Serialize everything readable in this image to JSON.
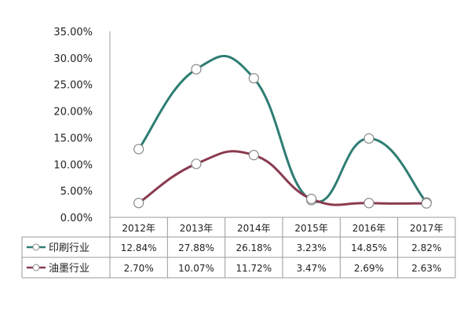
{
  "chart_data": {
    "type": "line",
    "title": "",
    "xlabel": "",
    "ylabel": "",
    "categories": [
      "2012年",
      "2013年",
      "2014年",
      "2015年",
      "2016年",
      "2017年"
    ],
    "ylim": [
      0,
      35
    ],
    "y_tick_labels": [
      "0.00%",
      "5.00%",
      "10.00%",
      "15.00%",
      "20.00%",
      "25.00%",
      "30.00%",
      "35.00%"
    ],
    "legend_placement": "data-table",
    "grid": false,
    "smooth": true,
    "series": [
      {
        "name": "印刷行业",
        "values": [
          12.84,
          27.88,
          26.18,
          3.23,
          14.85,
          2.82
        ],
        "labels": [
          "12.84%",
          "27.88%",
          "26.18%",
          "3.23%",
          "14.85%",
          "2.82%"
        ],
        "color": "#2e7d73"
      },
      {
        "name": "油墨行业",
        "values": [
          2.7,
          10.07,
          11.72,
          3.47,
          2.69,
          2.63
        ],
        "labels": [
          "2.70%",
          "10.07%",
          "11.72%",
          "3.47%",
          "2.69%",
          "2.63%"
        ],
        "color": "#8a3b4f"
      }
    ]
  }
}
